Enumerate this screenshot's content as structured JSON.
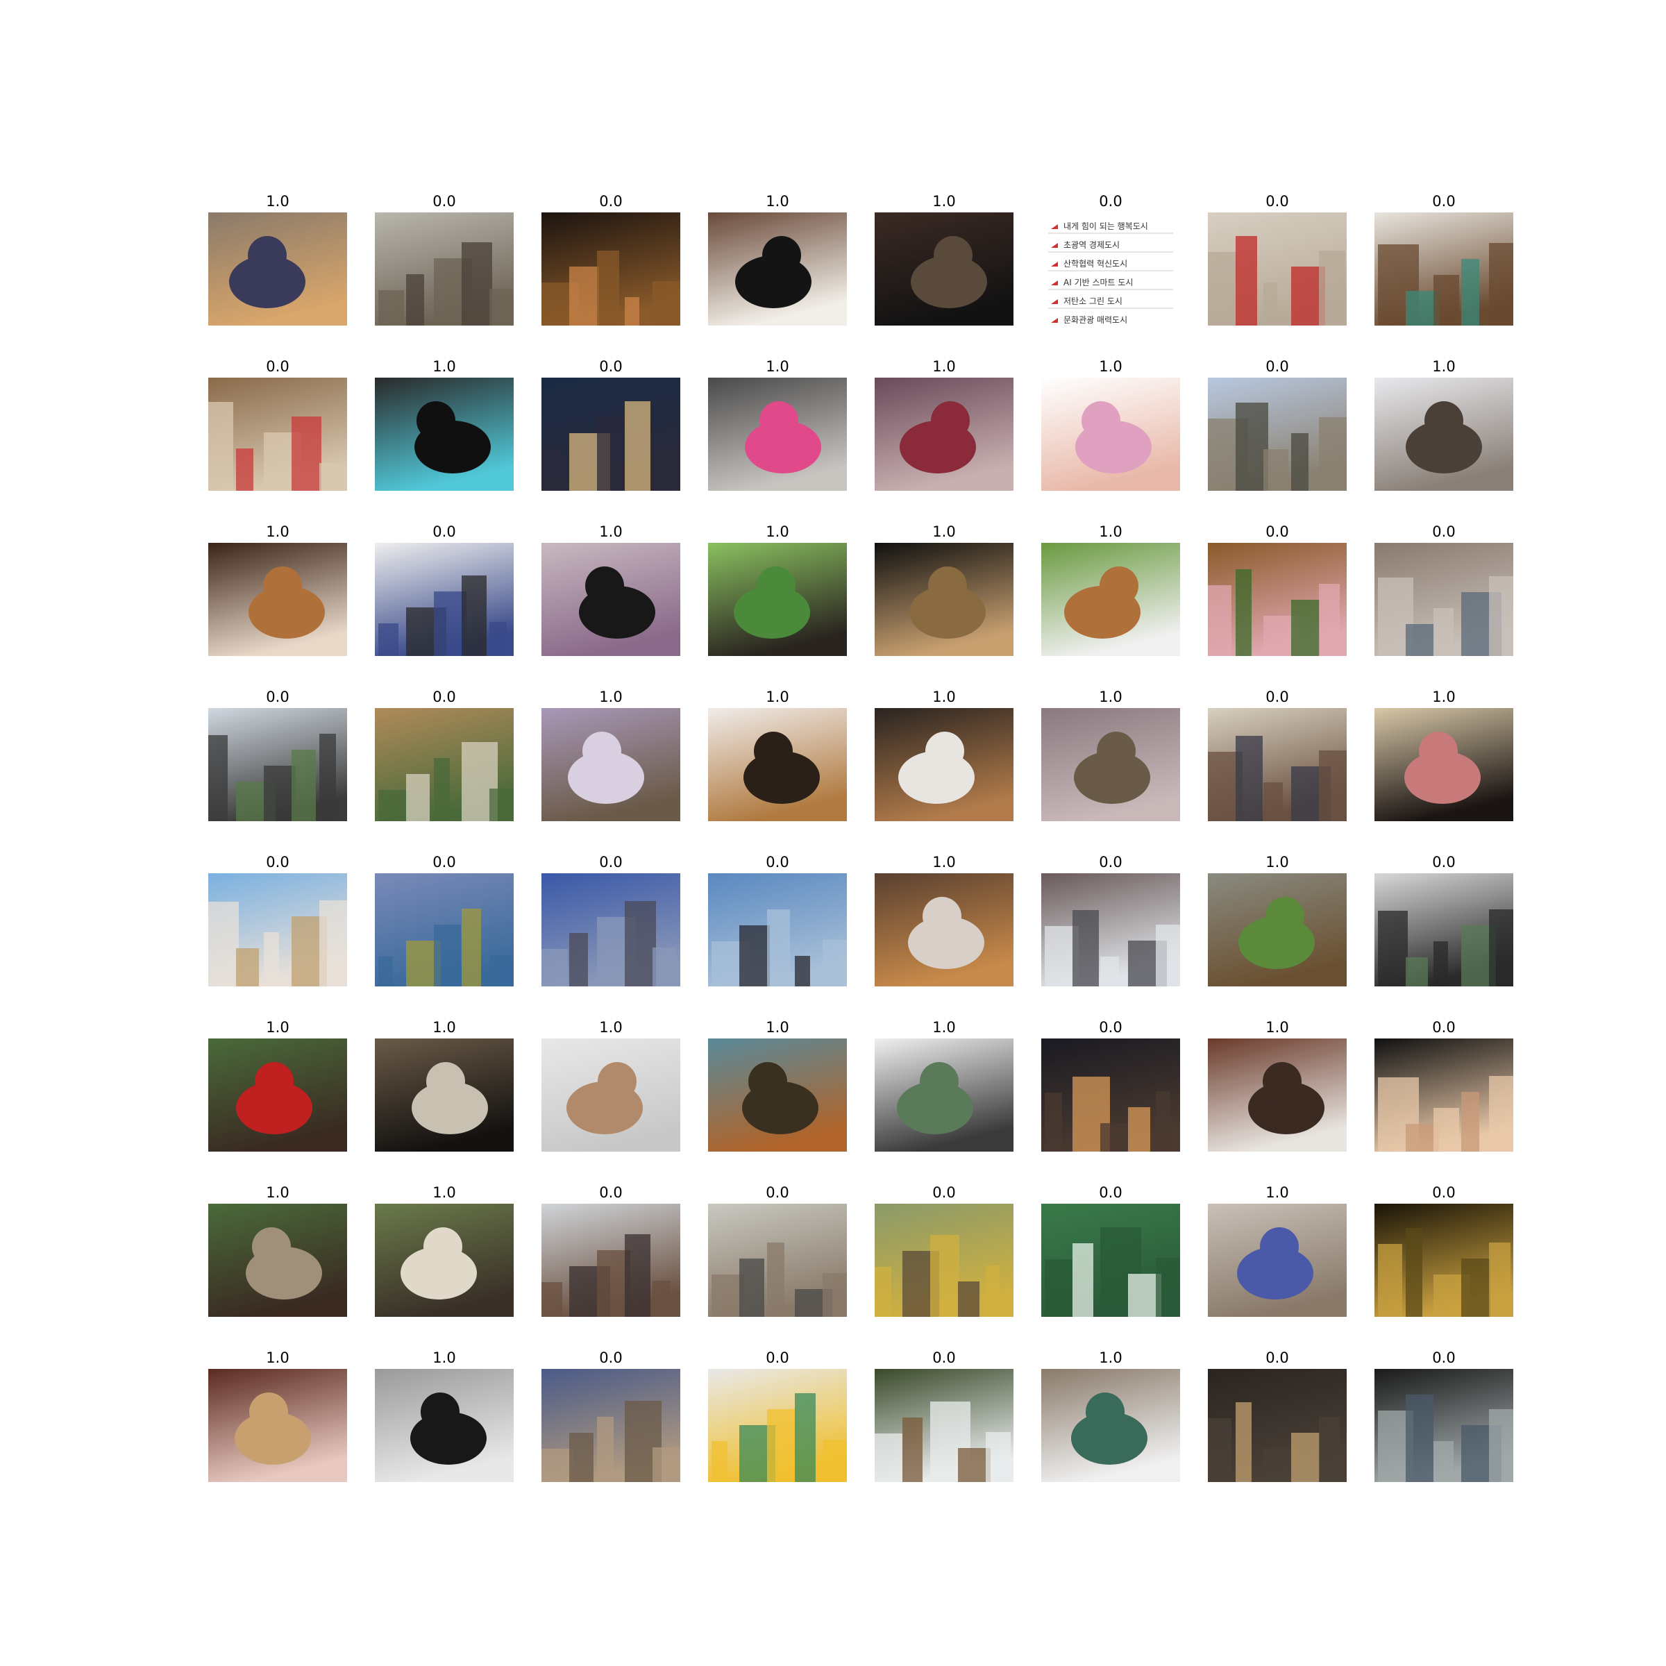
{
  "grid": {
    "rows": 8,
    "cols": 8,
    "cells": [
      {
        "label": "1.0",
        "subject": "cats",
        "colors": [
          "#8a7a6a",
          "#d9a66b",
          "#3a3a5a"
        ]
      },
      {
        "label": "0.0",
        "subject": "hillside-village",
        "colors": [
          "#b9b6ae",
          "#6e6456",
          "#4a4038"
        ]
      },
      {
        "label": "0.0",
        "subject": "night-alley",
        "colors": [
          "#1c1410",
          "#8a5a2a",
          "#c9844a"
        ]
      },
      {
        "label": "1.0",
        "subject": "cat",
        "colors": [
          "#6a4a3a",
          "#f2efe8",
          "#141414"
        ]
      },
      {
        "label": "1.0",
        "subject": "cat",
        "colors": [
          "#3c2a24",
          "#121212",
          "#5a4a3c"
        ]
      },
      {
        "label": "0.0",
        "subject": "korean-text-list",
        "colors": [
          "#ffffff",
          "#ffffff",
          "#d33030"
        ],
        "lines": [
          "내게 힘이 되는 행복도시",
          "초광역 경제도시",
          "산학협력 혁신도시",
          "AI 기반 스마트 도시",
          "저탄소 그린 도시",
          "문화관광 매력도시"
        ]
      },
      {
        "label": "0.0",
        "subject": "poster",
        "colors": [
          "#d8cfc2",
          "#b8aa98",
          "#c02a2a"
        ]
      },
      {
        "label": "0.0",
        "subject": "alley-people",
        "colors": [
          "#e8e4de",
          "#6a4a30",
          "#3a8a7a"
        ]
      },
      {
        "label": "0.0",
        "subject": "photo-shop-interior",
        "colors": [
          "#8a6a4a",
          "#d8c8b0",
          "#c83a3a"
        ]
      },
      {
        "label": "1.0",
        "subject": "cat",
        "colors": [
          "#2a2a2a",
          "#50c8d8",
          "#101010"
        ]
      },
      {
        "label": "0.0",
        "subject": "city-night",
        "colors": [
          "#1a2a44",
          "#2a2a3a",
          "#d8b880"
        ]
      },
      {
        "label": "1.0",
        "subject": "dog",
        "colors": [
          "#4a4a4a",
          "#c8c4c0",
          "#e04a8a"
        ]
      },
      {
        "label": "1.0",
        "subject": "dog",
        "colors": [
          "#6a4a5a",
          "#c8b0b0",
          "#8a2a3a"
        ]
      },
      {
        "label": "1.0",
        "subject": "girl-puppy",
        "colors": [
          "#ffffff",
          "#e8b8a8",
          "#e0a0c0"
        ]
      },
      {
        "label": "0.0",
        "subject": "street",
        "colors": [
          "#b8c8e0",
          "#8a8070",
          "#4a4a40"
        ]
      },
      {
        "label": "1.0",
        "subject": "cat",
        "colors": [
          "#e8e8ec",
          "#8a8078",
          "#4a4038"
        ]
      },
      {
        "label": "1.0",
        "subject": "cat",
        "colors": [
          "#3a2418",
          "#e8d8c8",
          "#b0703a"
        ]
      },
      {
        "label": "0.0",
        "subject": "person",
        "colors": [
          "#eeeeee",
          "#3a4a8a",
          "#2a2a2a"
        ]
      },
      {
        "label": "1.0",
        "subject": "cat-on-quilt",
        "colors": [
          "#c8b8c0",
          "#8a6a8a",
          "#181818"
        ]
      },
      {
        "label": "1.0",
        "subject": "dog",
        "colors": [
          "#8ac060",
          "#2a2420",
          "#4a8a3a"
        ]
      },
      {
        "label": "1.0",
        "subject": "cat",
        "colors": [
          "#101010",
          "#c8a070",
          "#8a6a40"
        ]
      },
      {
        "label": "1.0",
        "subject": "dog-on-grass",
        "colors": [
          "#6a9a40",
          "#f0f0f0",
          "#b0703a"
        ]
      },
      {
        "label": "0.0",
        "subject": "food",
        "colors": [
          "#8a5a2a",
          "#e0a8b0",
          "#3a6a2a"
        ]
      },
      {
        "label": "0.0",
        "subject": "village",
        "colors": [
          "#8a7a70",
          "#c8c0b8",
          "#5a6a7a"
        ]
      },
      {
        "label": "0.0",
        "subject": "market-crowd",
        "colors": [
          "#d0d8e0",
          "#3a3a3a",
          "#5a7a4a"
        ]
      },
      {
        "label": "0.0",
        "subject": "alley-mural",
        "colors": [
          "#b08a5a",
          "#4a6a3a",
          "#d8d0c0"
        ]
      },
      {
        "label": "1.0",
        "subject": "cat",
        "colors": [
          "#a898b8",
          "#6a5a48",
          "#d8d0e0"
        ]
      },
      {
        "label": "1.0",
        "subject": "dog",
        "colors": [
          "#f0ecea",
          "#b07a40",
          "#2a2018"
        ]
      },
      {
        "label": "1.0",
        "subject": "cat",
        "colors": [
          "#2a2420",
          "#b07a4a",
          "#e8e4e0"
        ]
      },
      {
        "label": "1.0",
        "subject": "cat",
        "colors": [
          "#8a7a80",
          "#c8b8b8",
          "#6a5a48"
        ]
      },
      {
        "label": "0.0",
        "subject": "street",
        "colors": [
          "#d8d0c0",
          "#6a5040",
          "#3a3a48"
        ]
      },
      {
        "label": "1.0",
        "subject": "dog",
        "colors": [
          "#d8c8a8",
          "#1a1412",
          "#c87a7a"
        ]
      },
      {
        "label": "0.0",
        "subject": "festival-tents",
        "colors": [
          "#7ab0e0",
          "#e8e0d8",
          "#c0a070"
        ]
      },
      {
        "label": "0.0",
        "subject": "city-view",
        "colors": [
          "#7a8ab8",
          "#3a6a9a",
          "#a09a3a"
        ]
      },
      {
        "label": "0.0",
        "subject": "skyline",
        "colors": [
          "#3a58a8",
          "#8a98b8",
          "#4a4a58"
        ]
      },
      {
        "label": "0.0",
        "subject": "sea-view",
        "colors": [
          "#5a88c0",
          "#a8c0d8",
          "#2a2a30"
        ]
      },
      {
        "label": "1.0",
        "subject": "dog",
        "colors": [
          "#5a4030",
          "#c88a4a",
          "#d8d0c8"
        ]
      },
      {
        "label": "0.0",
        "subject": "alley-snow",
        "colors": [
          "#6a5a5a",
          "#e0e4e8",
          "#4a4a50"
        ]
      },
      {
        "label": "1.0",
        "subject": "dog",
        "colors": [
          "#8a8a80",
          "#6a5030",
          "#5a8a3a"
        ]
      },
      {
        "label": "0.0",
        "subject": "street",
        "colors": [
          "#d8d8d8",
          "#2a2a2a",
          "#5a7a5a"
        ]
      },
      {
        "label": "1.0",
        "subject": "dog",
        "colors": [
          "#4a6a3a",
          "#3a2a22",
          "#c02020"
        ]
      },
      {
        "label": "1.0",
        "subject": "dog",
        "colors": [
          "#6a5a48",
          "#141210",
          "#c8c0b0"
        ]
      },
      {
        "label": "1.0",
        "subject": "cat",
        "colors": [
          "#e8e8e8",
          "#c8c8c8",
          "#b08a6a"
        ]
      },
      {
        "label": "1.0",
        "subject": "puppies",
        "colors": [
          "#5a8a9a",
          "#b0642a",
          "#3a3020"
        ]
      },
      {
        "label": "1.0",
        "subject": "dogs-behind-fence",
        "colors": [
          "#f0f0f0",
          "#3a3a3a",
          "#5a7a5a"
        ]
      },
      {
        "label": "0.0",
        "subject": "night-village",
        "colors": [
          "#1a1a22",
          "#4a3a30",
          "#d89a5a"
        ]
      },
      {
        "label": "1.0",
        "subject": "cat",
        "colors": [
          "#6a3a2a",
          "#e8e4e0",
          "#3a2a22"
        ]
      },
      {
        "label": "0.0",
        "subject": "moon",
        "colors": [
          "#101010",
          "#e8c8a8",
          "#c89a78"
        ]
      },
      {
        "label": "1.0",
        "subject": "dog",
        "colors": [
          "#4a6a3a",
          "#3a2a22",
          "#a0907a"
        ]
      },
      {
        "label": "1.0",
        "subject": "dog",
        "colors": [
          "#6a7a4a",
          "#3a3028",
          "#e0d8c8"
        ]
      },
      {
        "label": "0.0",
        "subject": "alley",
        "colors": [
          "#d0d4d8",
          "#6a5040",
          "#3a3030"
        ]
      },
      {
        "label": "0.0",
        "subject": "rooftops",
        "colors": [
          "#c8c8c0",
          "#8a7a6a",
          "#4a4a48"
        ]
      },
      {
        "label": "0.0",
        "subject": "tree-path",
        "colors": [
          "#8a9a6a",
          "#d0b040",
          "#5a4a3a"
        ]
      },
      {
        "label": "0.0",
        "subject": "green-sign",
        "colors": [
          "#3a7a4a",
          "#2a5a38",
          "#e8f0e8"
        ]
      },
      {
        "label": "1.0",
        "subject": "kitten-held",
        "colors": [
          "#c8c0b8",
          "#8a7a6a",
          "#4a5aa8"
        ]
      },
      {
        "label": "0.0",
        "subject": "lights",
        "colors": [
          "#1a1408",
          "#c8a040",
          "#5a4a18"
        ]
      },
      {
        "label": "1.0",
        "subject": "dog",
        "colors": [
          "#5a2a20",
          "#e8c8c0",
          "#c8a070"
        ]
      },
      {
        "label": "1.0",
        "subject": "cat",
        "colors": [
          "#9a9a9a",
          "#e8e8e8",
          "#181818"
        ]
      },
      {
        "label": "0.0",
        "subject": "alley-dusk",
        "colors": [
          "#4a5a88",
          "#b09a80",
          "#6a5a48"
        ]
      },
      {
        "label": "0.0",
        "subject": "map-poster",
        "colors": [
          "#e8e8e8",
          "#f0c030",
          "#3a8a5a"
        ]
      },
      {
        "label": "0.0",
        "subject": "map-sign",
        "colors": [
          "#3a4a2a",
          "#e8ecec",
          "#7a5a3a"
        ]
      },
      {
        "label": "1.0",
        "subject": "dog",
        "colors": [
          "#8a7a6a",
          "#f0f0f0",
          "#3a6a5a"
        ]
      },
      {
        "label": "0.0",
        "subject": "gallery-interior",
        "colors": [
          "#2a2420",
          "#4a4038",
          "#c0a070"
        ]
      },
      {
        "label": "0.0",
        "subject": "arcade",
        "colors": [
          "#1a1a1a",
          "#a0a8a8",
          "#4a5a6a"
        ]
      }
    ]
  }
}
